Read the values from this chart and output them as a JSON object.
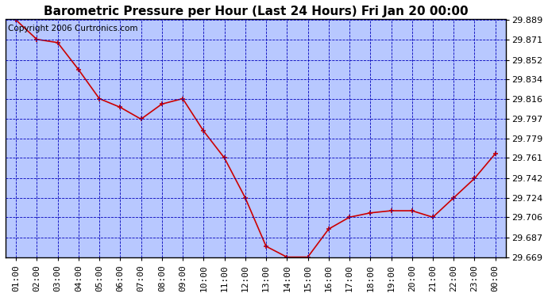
{
  "title": "Barometric Pressure per Hour (Last 24 Hours) Fri Jan 20 00:00",
  "copyright": "Copyright 2006 Curtronics.com",
  "hours": [
    "01:00",
    "02:00",
    "03:00",
    "04:00",
    "05:00",
    "06:00",
    "07:00",
    "08:00",
    "09:00",
    "10:00",
    "11:00",
    "12:00",
    "13:00",
    "14:00",
    "15:00",
    "16:00",
    "17:00",
    "18:00",
    "19:00",
    "20:00",
    "21:00",
    "22:00",
    "23:00",
    "00:00"
  ],
  "values": [
    29.889,
    29.871,
    29.868,
    29.843,
    29.816,
    29.808,
    29.797,
    29.811,
    29.816,
    29.786,
    29.761,
    29.724,
    29.679,
    29.669,
    29.669,
    29.695,
    29.706,
    29.71,
    29.712,
    29.712,
    29.706,
    29.724,
    29.742,
    29.765
  ],
  "ylim_min": 29.669,
  "ylim_max": 29.889,
  "ytick_values": [
    29.889,
    29.871,
    29.852,
    29.834,
    29.816,
    29.797,
    29.779,
    29.761,
    29.742,
    29.724,
    29.706,
    29.687,
    29.669
  ],
  "line_color": "#cc0000",
  "marker_color": "#cc0000",
  "plot_bg": "#b8c8ff",
  "outer_bg": "#ffffff",
  "grid_color": "#0000bb",
  "title_fontsize": 11,
  "tick_fontsize": 8,
  "copyright_fontsize": 7.5
}
